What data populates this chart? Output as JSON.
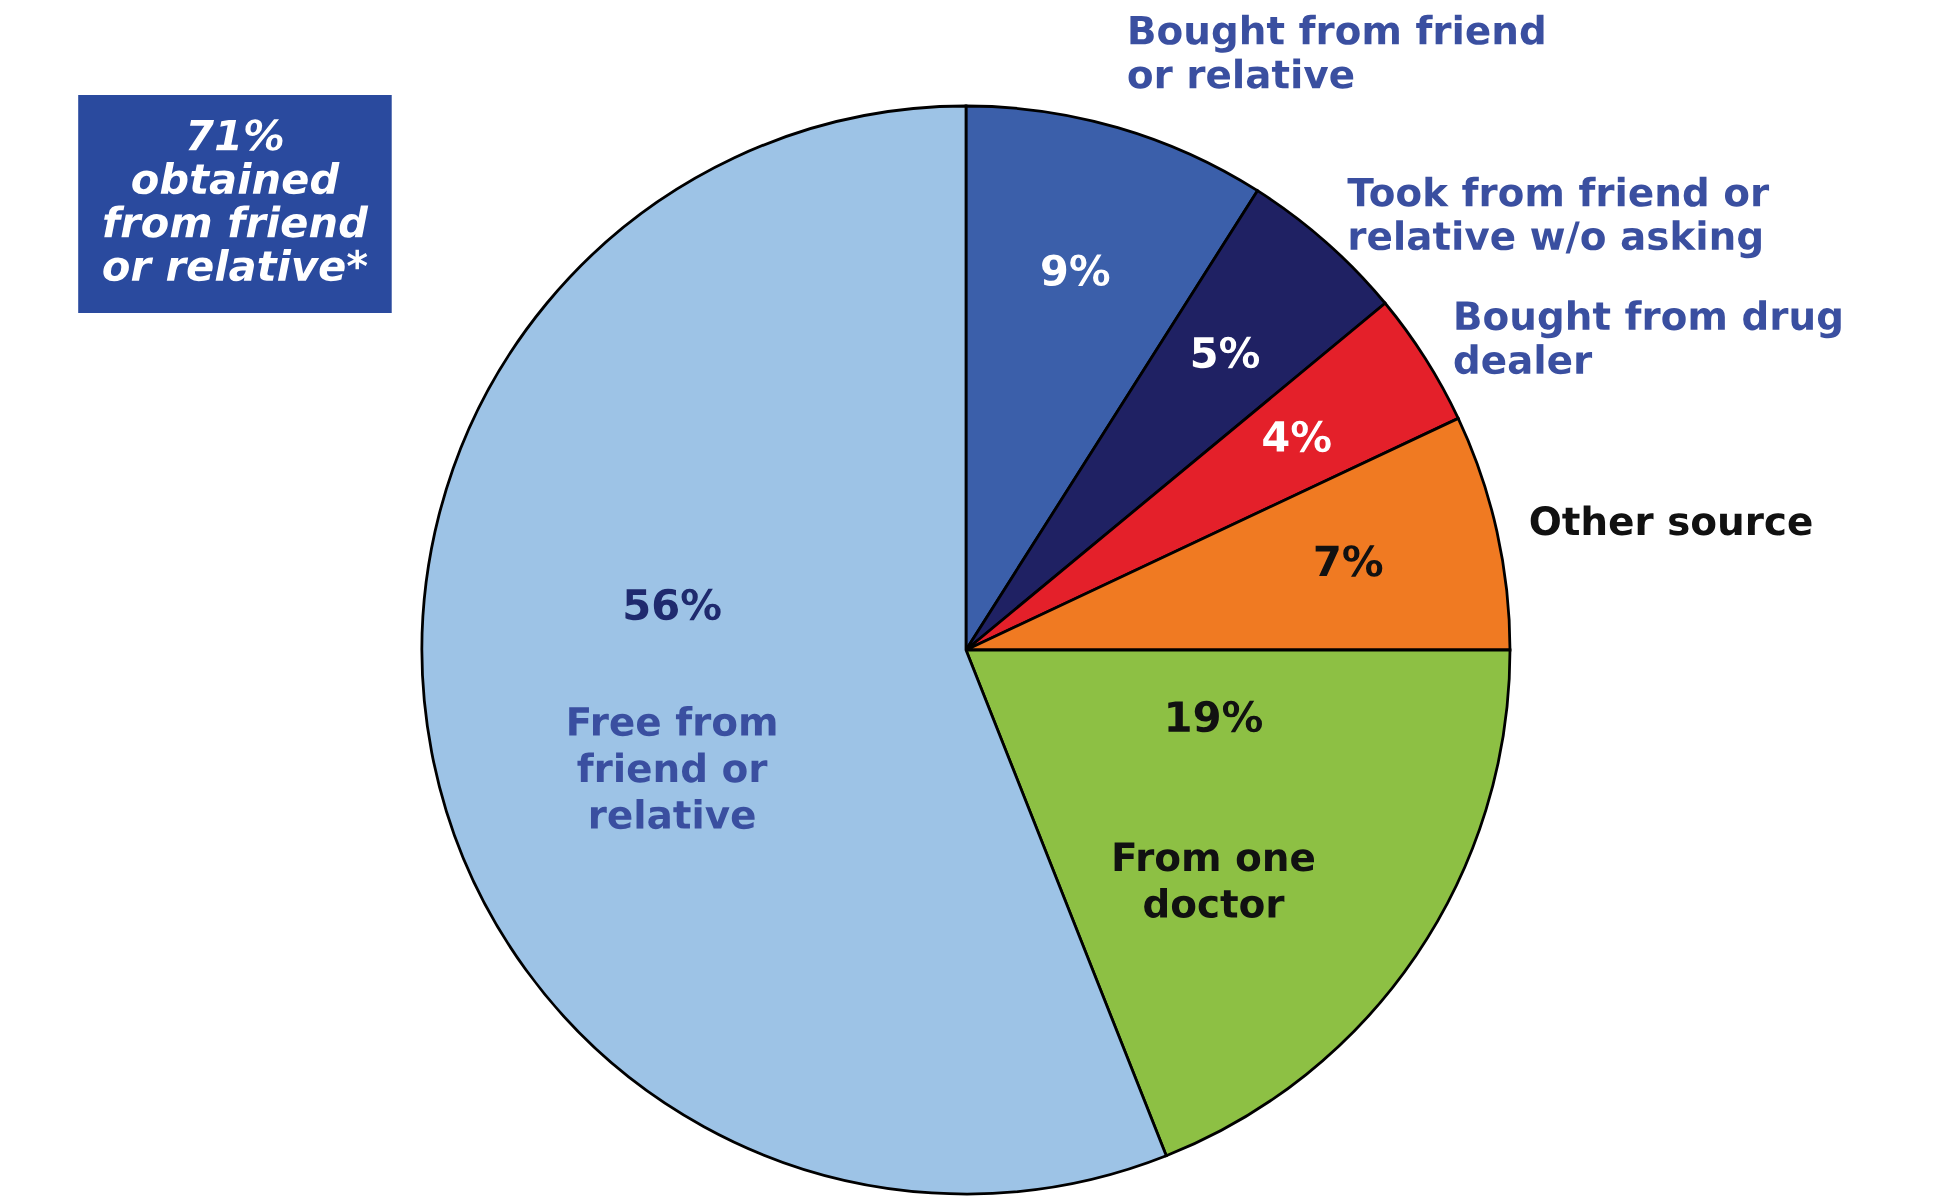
{
  "chart_data": {
    "type": "pie",
    "categories": [
      "Bought from friend\nor relative",
      "Took from friend or\nrelative w/o asking",
      "Bought from drug\ndealer",
      "Other source",
      "From one\ndoctor",
      "Free from\nfriend or\nrelative"
    ],
    "values": [
      9,
      5,
      4,
      7,
      19,
      56
    ],
    "colors": [
      "#3b5faa",
      "#1f2163",
      "#e4202a",
      "#f07a22",
      "#8dc044",
      "#9dc3e6"
    ],
    "value_labels": [
      "9%",
      "5%",
      "4%",
      "7%",
      "19%",
      "56%"
    ],
    "annotations": [
      "71%\nobtained\nfrom friend\nor relative*"
    ]
  }
}
